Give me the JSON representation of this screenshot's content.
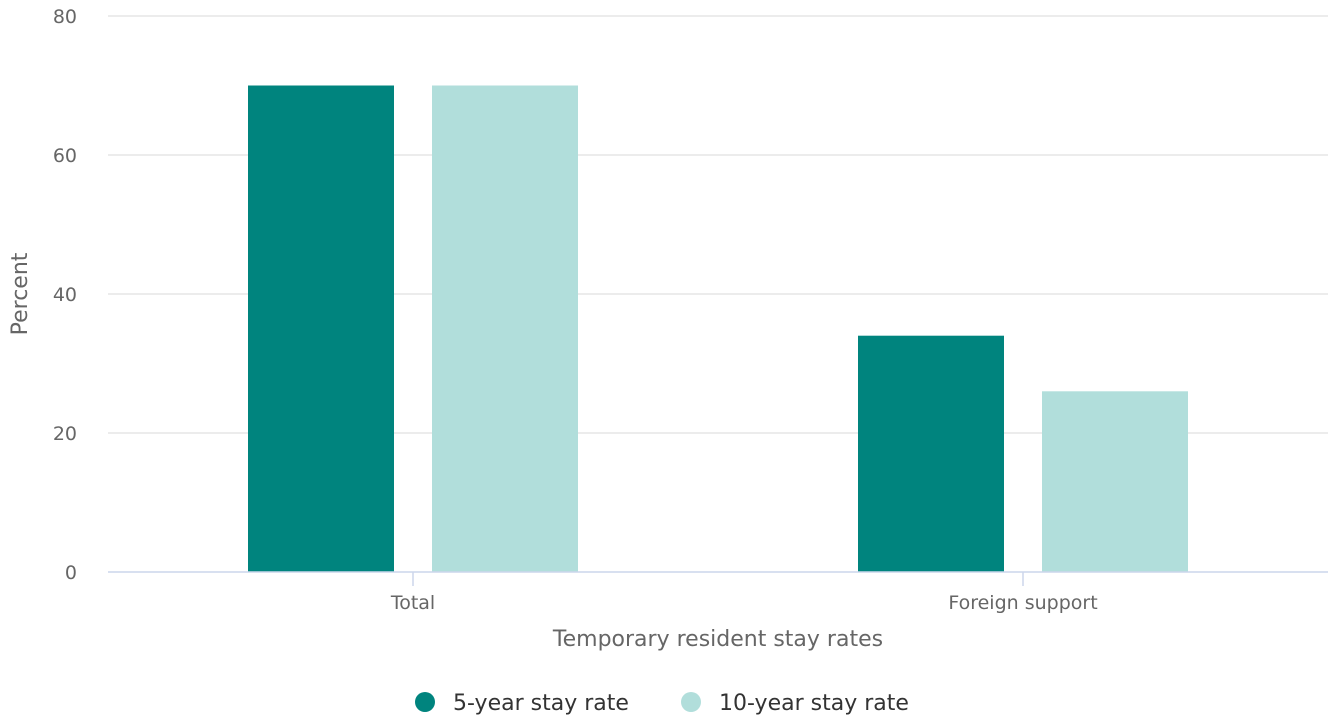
{
  "chart_data": {
    "type": "bar",
    "categories": [
      "Total",
      "Foreign support"
    ],
    "series": [
      {
        "name": "5-year stay rate",
        "values": [
          70,
          34
        ],
        "color": "#00847e"
      },
      {
        "name": "10-year stay rate",
        "values": [
          70,
          26
        ],
        "color": "#b1dedb"
      }
    ],
    "xlabel": "Temporary resident stay rates",
    "ylabel": "Percent",
    "ylim": [
      0,
      80
    ],
    "yticks": [
      0,
      20,
      40,
      60,
      80
    ],
    "grid": true,
    "legend_position": "bottom-center"
  }
}
